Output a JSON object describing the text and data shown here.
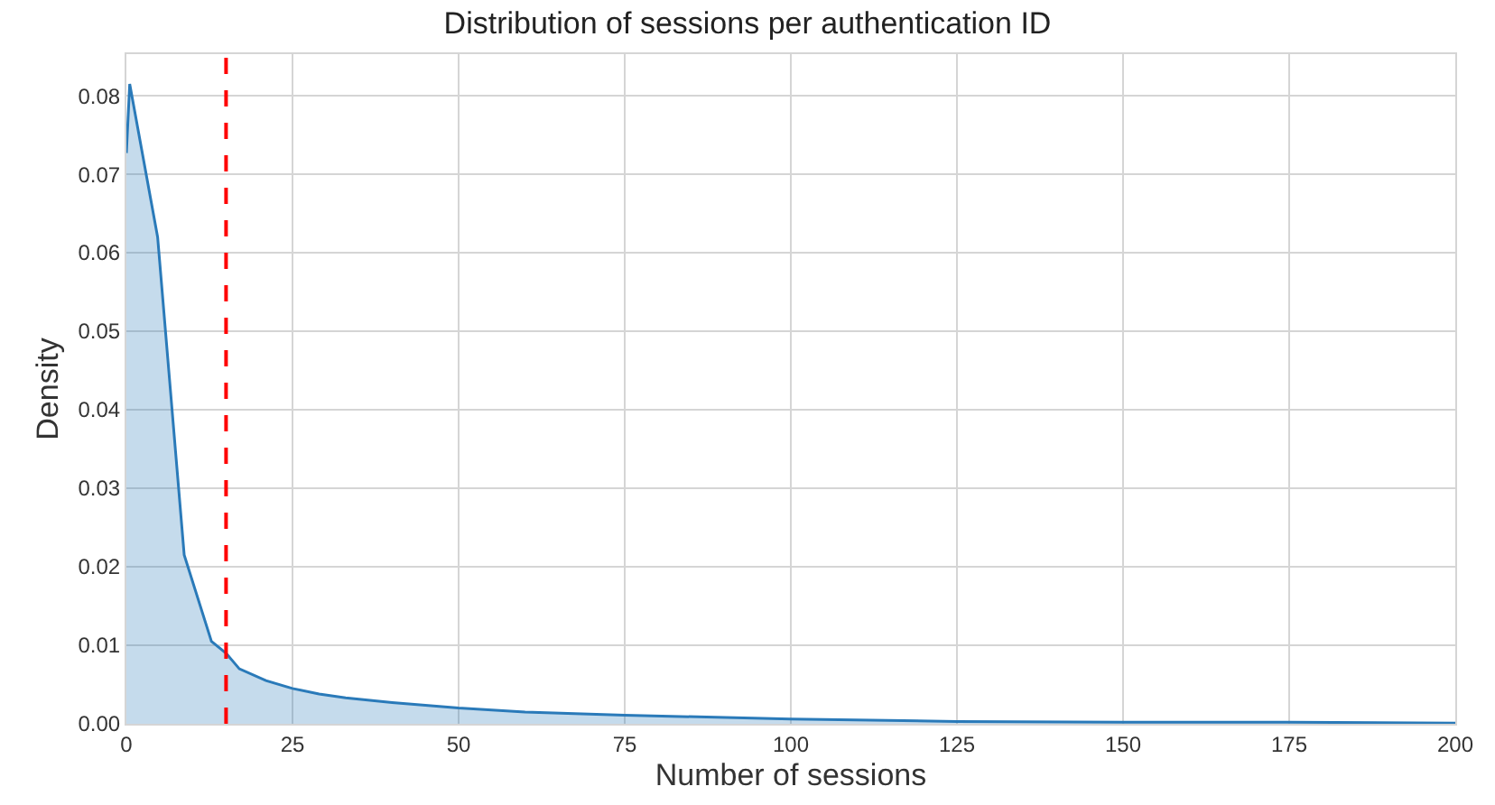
{
  "chart_data": {
    "type": "area",
    "title": "Distribution of sessions per authentication ID",
    "xlabel": "Number of sessions",
    "ylabel": "Density",
    "series": [
      {
        "color": "#2a7ab9",
        "x": [
          0,
          0.5,
          4.7,
          8.7,
          12.8,
          15,
          17,
          21,
          25,
          29,
          33,
          40,
          50,
          60,
          75,
          100,
          125,
          150,
          175,
          200
        ],
        "values": [
          0.0727,
          0.0815,
          0.062,
          0.0215,
          0.0105,
          0.009,
          0.007,
          0.0055,
          0.0045,
          0.0038,
          0.0033,
          0.0027,
          0.002,
          0.0015,
          0.0011,
          0.0006,
          0.0003,
          0.0002,
          0.0002,
          0.0001
        ]
      }
    ],
    "xlim": [
      0,
      200
    ],
    "xticks": [
      0,
      25,
      50,
      75,
      100,
      125,
      150,
      175,
      200
    ],
    "ylim": [
      0,
      0.0853
    ],
    "yticks": [
      {
        "value": 0,
        "label": "0.00"
      },
      {
        "value": 0.01,
        "label": "0.01"
      },
      {
        "value": 0.02,
        "label": "0.02"
      },
      {
        "value": 0.03,
        "label": "0.03"
      },
      {
        "value": 0.04,
        "label": "0.04"
      },
      {
        "value": 0.05,
        "label": "0.05"
      },
      {
        "value": 0.06,
        "label": "0.06"
      },
      {
        "value": 0.07,
        "label": "0.07"
      },
      {
        "value": 0.08,
        "label": "0.08"
      }
    ],
    "ref_lines": [
      {
        "axis": "x",
        "value": 15,
        "color": "#ff0000",
        "line_style": "dashed"
      }
    ],
    "grid": true
  }
}
